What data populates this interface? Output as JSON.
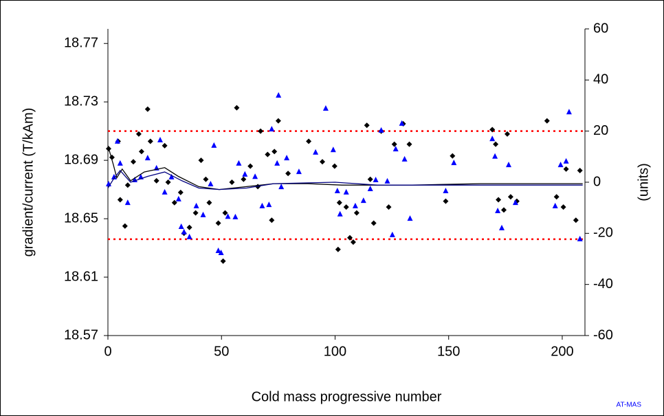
{
  "chart_data": {
    "type": "scatter",
    "xlabel": "Cold mass progressive number",
    "ylabel": "gradient/current (T/kAm)",
    "y2label": "(units)",
    "annotation": "AT-MAS",
    "xlim": [
      0,
      210
    ],
    "xticks": [
      0,
      50,
      100,
      150,
      200
    ],
    "ylim": [
      18.57,
      18.78
    ],
    "yticks": [
      18.57,
      18.61,
      18.65,
      18.69,
      18.73,
      18.77
    ],
    "y2lim": [
      -60,
      60
    ],
    "y2ticks": [
      -60,
      -40,
      -20,
      0,
      20,
      40,
      60
    ],
    "limits": {
      "values": [
        18.636,
        18.71
      ],
      "color": "#ff0000"
    },
    "series": [
      {
        "marker": "diamond",
        "color": "#000000",
        "x": [
          0.3,
          1.8,
          4.5,
          5.4,
          7.5,
          8.7,
          11.2,
          13.6,
          14.8,
          17.5,
          18.7,
          21.4,
          25.0,
          26.5,
          29.3,
          32.0,
          33.5,
          35.9,
          38.6,
          41.0,
          43.1,
          44.6,
          48.6,
          50.7,
          51.6,
          54.6,
          56.7,
          59.7,
          62.7,
          66.0,
          67.2,
          70.3,
          72.1,
          73.3,
          75.0,
          79.3,
          88.4,
          94.4,
          99.8,
          101.9,
          104.9,
          106.5,
          108.0,
          101.3,
          109.5,
          114.0,
          115.5,
          117.0,
          120.3,
          123.6,
          126.1,
          130.0,
          132.7,
          148.7,
          151.7,
          169.2,
          170.7,
          171.9,
          174.3,
          175.8,
          177.3,
          180.0,
          193.3,
          197.5,
          200.5,
          201.7,
          206.0,
          207.8
        ],
        "y": [
          18.698,
          18.692,
          18.703,
          18.663,
          18.645,
          18.673,
          18.689,
          18.708,
          18.696,
          18.725,
          18.703,
          18.676,
          18.7,
          18.675,
          18.661,
          18.668,
          18.64,
          18.644,
          18.654,
          18.69,
          18.677,
          18.661,
          18.647,
          18.621,
          18.654,
          18.675,
          18.726,
          18.677,
          18.686,
          18.672,
          18.71,
          18.694,
          18.649,
          18.696,
          18.717,
          18.681,
          18.703,
          18.689,
          18.686,
          18.661,
          18.658,
          18.637,
          18.634,
          18.629,
          18.654,
          18.714,
          18.677,
          18.647,
          18.71,
          18.658,
          18.701,
          18.715,
          18.701,
          18.662,
          18.693,
          18.711,
          18.701,
          18.663,
          18.656,
          18.708,
          18.665,
          18.662,
          18.717,
          18.665,
          18.658,
          18.684,
          18.649,
          18.683
        ]
      },
      {
        "marker": "triangle",
        "color": "#0000ff",
        "axis": "y2",
        "x": [
          0.3,
          2.7,
          4.2,
          5.4,
          8.7,
          11.8,
          14.5,
          17.5,
          21.4,
          23.0,
          25.0,
          28.0,
          31.1,
          32.3,
          33.5,
          35.9,
          38.9,
          41.9,
          45.2,
          46.7,
          48.6,
          49.8,
          52.8,
          56.1,
          57.6,
          60.3,
          64.8,
          67.9,
          70.9,
          72.1,
          74.5,
          75.1,
          76.3,
          78.7,
          84.1,
          91.4,
          95.9,
          99.2,
          101.0,
          102.2,
          104.9,
          108.9,
          112.5,
          115.5,
          117.9,
          120.3,
          123.0,
          125.2,
          126.7,
          129.4,
          130.6,
          133.0,
          148.7,
          152.3,
          169.2,
          170.4,
          171.6,
          173.4,
          176.4,
          179.4,
          196.9,
          199.3,
          201.7,
          203.0,
          207.8
        ],
        "y": [
          -0.8,
          1.9,
          15.9,
          7.3,
          -8.1,
          0.8,
          1.9,
          9.4,
          5.4,
          16.4,
          -4.0,
          1.9,
          -6.7,
          -17.5,
          -19.6,
          -21.5,
          -9.4,
          -12.9,
          -0.8,
          14.3,
          -26.9,
          -27.7,
          -13.5,
          -13.7,
          7.3,
          3.0,
          2.1,
          -9.4,
          -8.9,
          20.7,
          7.3,
          33.9,
          -1.9,
          9.4,
          4.0,
          11.6,
          28.8,
          12.6,
          -3.5,
          -12.6,
          -4.0,
          -9.4,
          -7.3,
          -2.7,
          0.8,
          20.2,
          0.3,
          -20.7,
          12.9,
          22.9,
          8.9,
          -14.3,
          -3.5,
          7.5,
          16.9,
          10.0,
          -11.3,
          -18.0,
          6.7,
          -8.1,
          -9.4,
          6.7,
          8.1,
          27.4,
          -22.3
        ]
      },
      {
        "marker": "line",
        "color": "#000000",
        "x": [
          0,
          2.4,
          3.9,
          6.3,
          10,
          16,
          25,
          31,
          40,
          49,
          61,
          73,
          88,
          103,
          134,
          164,
          209
        ],
        "y": [
          18.7,
          18.687,
          18.678,
          18.684,
          18.676,
          18.682,
          18.685,
          18.679,
          18.672,
          18.67,
          18.672,
          18.674,
          18.674,
          18.673,
          18.673,
          18.674,
          18.674
        ]
      },
      {
        "marker": "line",
        "color": "#000080",
        "x": [
          0,
          2.4,
          5.4,
          10,
          17.5,
          25,
          32.6,
          40,
          49,
          61,
          73,
          100,
          118.5,
          164,
          209
        ],
        "y": [
          18.671,
          18.677,
          18.683,
          18.675,
          18.679,
          18.682,
          18.676,
          18.671,
          18.67,
          18.671,
          18.674,
          18.675,
          18.673,
          18.673,
          18.673
        ]
      }
    ]
  }
}
